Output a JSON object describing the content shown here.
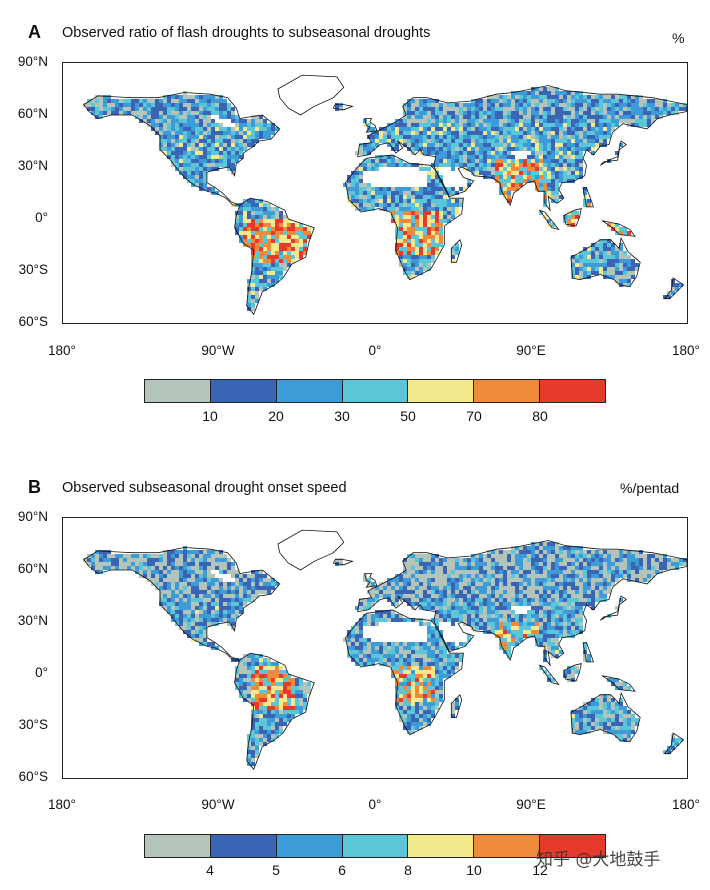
{
  "panels": [
    {
      "letter": "A",
      "title": "Observed ratio of flash droughts to subseasonal droughts",
      "unit": "%",
      "lat_labels": [
        "90°N",
        "60°N",
        "30°N",
        "0°",
        "30°S",
        "60°S"
      ],
      "lon_labels": [
        "180°",
        "90°W",
        "0°",
        "90°E",
        "180°"
      ],
      "colorbar": {
        "colors": [
          "#b3c4bb",
          "#3a64b4",
          "#3d9cd8",
          "#5cc6d8",
          "#f2e88c",
          "#ee8a3c",
          "#e63a2c"
        ],
        "tick_labels": [
          "10",
          "20",
          "30",
          "50",
          "70",
          "80"
        ]
      }
    },
    {
      "letter": "B",
      "title": "Observed subseasonal drought onset speed",
      "unit": "%/pentad",
      "lat_labels": [
        "90°N",
        "60°N",
        "30°N",
        "0°",
        "30°S",
        "60°S"
      ],
      "lon_labels": [
        "180°",
        "90°W",
        "0°",
        "90°E",
        "180°"
      ],
      "colorbar": {
        "colors": [
          "#b3c4bb",
          "#3a64b4",
          "#3d9cd8",
          "#5cc6d8",
          "#f2e88c",
          "#ee8a3c",
          "#e63a2c"
        ],
        "tick_labels": [
          "4",
          "5",
          "6",
          "8",
          "10",
          "12"
        ]
      }
    }
  ],
  "watermark": "知乎 @大地鼓手"
}
